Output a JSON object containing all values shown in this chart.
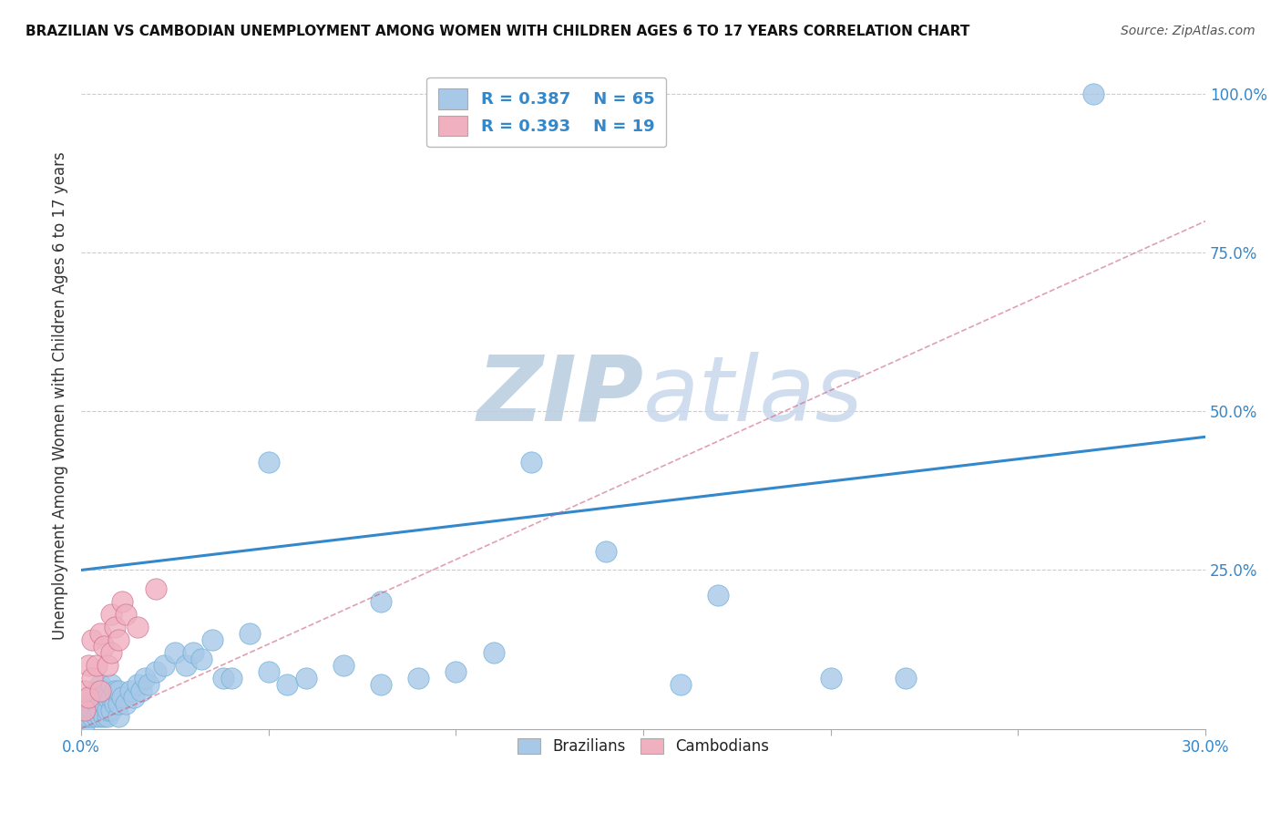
{
  "title": "BRAZILIAN VS CAMBODIAN UNEMPLOYMENT AMONG WOMEN WITH CHILDREN AGES 6 TO 17 YEARS CORRELATION CHART",
  "source": "Source: ZipAtlas.com",
  "ylabel": "Unemployment Among Women with Children Ages 6 to 17 years",
  "xlim": [
    0.0,
    0.3
  ],
  "ylim": [
    0.0,
    1.05
  ],
  "xticks": [
    0.0,
    0.05,
    0.1,
    0.15,
    0.2,
    0.25,
    0.3
  ],
  "xticklabels": [
    "0.0%",
    "",
    "",
    "",
    "",
    "",
    "30.0%"
  ],
  "yticks_right": [
    0.0,
    0.25,
    0.5,
    0.75,
    1.0
  ],
  "yticklabels_right": [
    "",
    "25.0%",
    "50.0%",
    "75.0%",
    "100.0%"
  ],
  "legend_R_brazilian": "R = 0.387",
  "legend_N_brazilian": "N = 65",
  "legend_R_cambodian": "R = 0.393",
  "legend_N_cambodian": "N = 19",
  "brazil_color": "#a8c8e8",
  "brazil_edge": "#6aaed6",
  "cambodia_color": "#f0b0c0",
  "cambodia_edge": "#d07090",
  "brazil_line_color": "#3388cc",
  "cambodia_line_color": "#cc6080",
  "watermark_zip": "ZIP",
  "watermark_atlas": "atlas",
  "watermark_color": "#d0dff0",
  "background_color": "#ffffff",
  "brazil_line_x": [
    0.0,
    0.3
  ],
  "brazil_line_y": [
    0.25,
    0.46
  ],
  "cambodia_line_x": [
    0.0,
    0.3
  ],
  "cambodia_line_y": [
    0.0,
    0.8
  ],
  "brazil_x": [
    0.001,
    0.001,
    0.002,
    0.002,
    0.002,
    0.003,
    0.003,
    0.003,
    0.003,
    0.004,
    0.004,
    0.004,
    0.005,
    0.005,
    0.005,
    0.005,
    0.006,
    0.006,
    0.006,
    0.007,
    0.007,
    0.007,
    0.008,
    0.008,
    0.008,
    0.009,
    0.009,
    0.01,
    0.01,
    0.01,
    0.011,
    0.012,
    0.013,
    0.014,
    0.015,
    0.016,
    0.017,
    0.018,
    0.02,
    0.022,
    0.025,
    0.028,
    0.03,
    0.032,
    0.035,
    0.038,
    0.04,
    0.045,
    0.05,
    0.055,
    0.06,
    0.07,
    0.08,
    0.09,
    0.1,
    0.11,
    0.12,
    0.14,
    0.16,
    0.17,
    0.2,
    0.22,
    0.27,
    0.05,
    0.08
  ],
  "brazil_y": [
    0.01,
    0.02,
    0.02,
    0.03,
    0.04,
    0.02,
    0.03,
    0.04,
    0.05,
    0.02,
    0.04,
    0.06,
    0.02,
    0.03,
    0.05,
    0.07,
    0.02,
    0.04,
    0.06,
    0.02,
    0.03,
    0.05,
    0.03,
    0.05,
    0.07,
    0.04,
    0.06,
    0.02,
    0.04,
    0.06,
    0.05,
    0.04,
    0.06,
    0.05,
    0.07,
    0.06,
    0.08,
    0.07,
    0.09,
    0.1,
    0.12,
    0.1,
    0.12,
    0.11,
    0.14,
    0.08,
    0.08,
    0.15,
    0.09,
    0.07,
    0.08,
    0.1,
    0.07,
    0.08,
    0.09,
    0.12,
    0.42,
    0.28,
    0.07,
    0.21,
    0.08,
    0.08,
    1.0,
    0.42,
    0.2
  ],
  "cambodia_x": [
    0.001,
    0.001,
    0.002,
    0.002,
    0.003,
    0.003,
    0.004,
    0.005,
    0.005,
    0.006,
    0.007,
    0.008,
    0.008,
    0.009,
    0.01,
    0.011,
    0.012,
    0.015,
    0.02
  ],
  "cambodia_y": [
    0.03,
    0.06,
    0.05,
    0.1,
    0.08,
    0.14,
    0.1,
    0.06,
    0.15,
    0.13,
    0.1,
    0.18,
    0.12,
    0.16,
    0.14,
    0.2,
    0.18,
    0.16,
    0.22
  ]
}
